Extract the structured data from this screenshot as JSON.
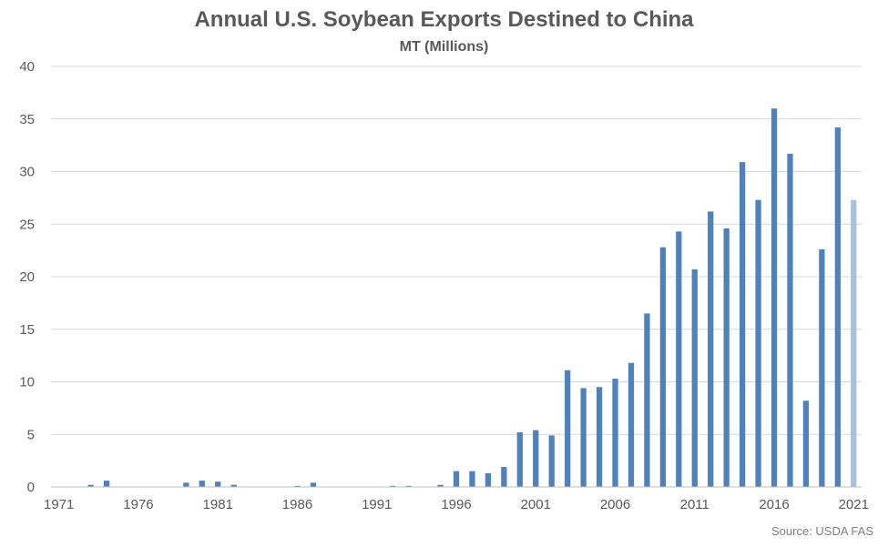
{
  "chart_data": {
    "type": "bar",
    "title": "Annual U.S. Soybean Exports Destined to China",
    "subtitle": "MT (Millions)",
    "source": "Source: USDA FAS",
    "ylim": [
      0,
      40
    ],
    "yticks": [
      0,
      5,
      10,
      15,
      20,
      25,
      30,
      35,
      40
    ],
    "xtick_labels": [
      "1971",
      "1976",
      "1981",
      "1986",
      "1991",
      "1996",
      "2001",
      "2006",
      "2011",
      "2016",
      "2021"
    ],
    "grid": true,
    "colors": {
      "bar": "#4f81bd",
      "highlight": "#a7c0dc",
      "grid": "#d9d9d9",
      "text": "#595959"
    },
    "highlight_category": "2021",
    "categories": [
      "1971",
      "1972",
      "1973",
      "1974",
      "1975",
      "1976",
      "1977",
      "1978",
      "1979",
      "1980",
      "1981",
      "1982",
      "1983",
      "1984",
      "1985",
      "1986",
      "1987",
      "1988",
      "1989",
      "1990",
      "1991",
      "1992",
      "1993",
      "1994",
      "1995",
      "1996",
      "1997",
      "1998",
      "1999",
      "2000",
      "2001",
      "2002",
      "2003",
      "2004",
      "2005",
      "2006",
      "2007",
      "2008",
      "2009",
      "2010",
      "2011",
      "2012",
      "2013",
      "2014",
      "2015",
      "2016",
      "2017",
      "2018",
      "2019",
      "2020",
      "2021"
    ],
    "values": [
      0,
      0,
      0.2,
      0.6,
      0,
      0,
      0,
      0,
      0.4,
      0.6,
      0.5,
      0.2,
      0,
      0,
      0,
      0.1,
      0.4,
      0,
      0,
      0,
      0,
      0.1,
      0.1,
      0,
      0.2,
      1.5,
      1.5,
      1.3,
      1.9,
      5.2,
      5.4,
      4.9,
      11.1,
      9.4,
      9.5,
      10.3,
      11.8,
      16.5,
      22.8,
      24.3,
      20.7,
      26.2,
      24.6,
      30.9,
      27.3,
      36.0,
      31.7,
      8.2,
      22.6,
      34.2,
      27.3
    ]
  }
}
